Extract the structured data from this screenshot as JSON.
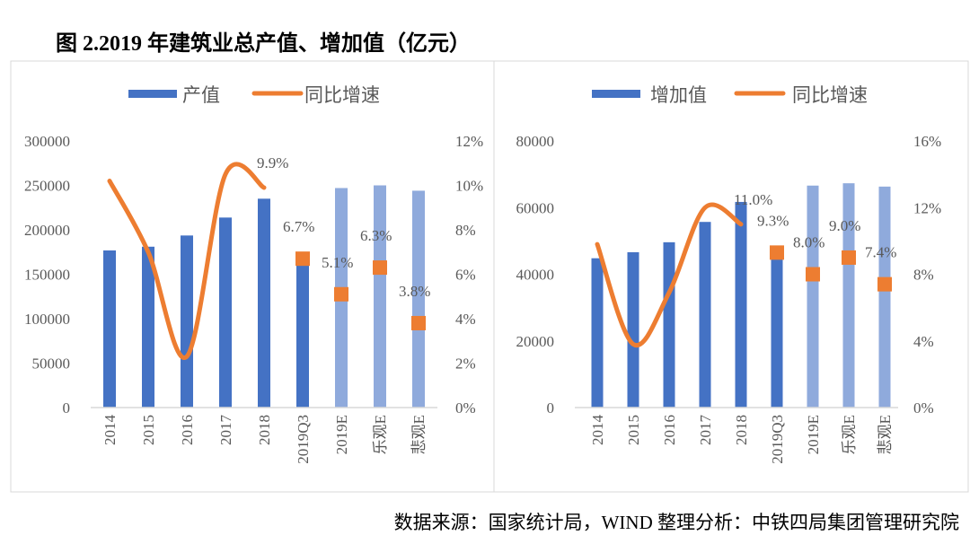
{
  "title": "图 2.2019 年建筑业总产值、增加值（亿元）",
  "footer": "数据来源：国家统计局，WIND  整理分析：中铁四局集团管理研究院",
  "colors": {
    "bar_actual": "#4472C4",
    "bar_estimate": "#8FAADC",
    "line": "#ED7D31",
    "text": "#595959",
    "axis": "#D9D9D9"
  },
  "chart_data": [
    {
      "type": "bar+line",
      "categories": [
        "2014",
        "2015",
        "2016",
        "2017",
        "2018",
        "2019Q3",
        "2019E",
        "乐观E",
        "悲观E"
      ],
      "legend": [
        "产值",
        "同比增速"
      ],
      "legend_position": "top",
      "y_left": {
        "range": [
          0,
          300000
        ],
        "ticks": [
          "0",
          "50000",
          "100000",
          "150000",
          "200000",
          "250000",
          "300000"
        ]
      },
      "y_right": {
        "range": [
          0,
          12
        ],
        "ticks": [
          "0%",
          "2%",
          "4%",
          "6%",
          "8%",
          "10%",
          "12%"
        ]
      },
      "grid": false,
      "series": [
        {
          "name": "产值",
          "kind": "bar",
          "values": [
            176800,
            181000,
            193600,
            213800,
            235000,
            170000,
            247000,
            250000,
            244000
          ],
          "estimate": [
            false,
            false,
            false,
            false,
            false,
            false,
            true,
            true,
            true
          ]
        },
        {
          "name": "同比增速",
          "kind": "line",
          "values": [
            10.2,
            7.0,
            2.3,
            10.5,
            9.9,
            null,
            null,
            null,
            null
          ],
          "labels": [
            null,
            null,
            null,
            null,
            "9.9%",
            null,
            null,
            null,
            null
          ]
        },
        {
          "name": "同比增速",
          "kind": "marker",
          "values": [
            null,
            null,
            null,
            null,
            null,
            6.7,
            5.1,
            6.3,
            3.8
          ],
          "labels": [
            null,
            null,
            null,
            null,
            null,
            "6.7%",
            "5.1%",
            "6.3%",
            "3.8%"
          ]
        }
      ]
    },
    {
      "type": "bar+line",
      "categories": [
        "2014",
        "2015",
        "2016",
        "2017",
        "2018",
        "2019Q3",
        "2019E",
        "乐观E",
        "悲观E"
      ],
      "legend": [
        "增加值",
        "同比增速"
      ],
      "legend_position": "top",
      "y_left": {
        "range": [
          0,
          80000
        ],
        "ticks": [
          "0",
          "20000",
          "40000",
          "60000",
          "80000"
        ]
      },
      "y_right": {
        "range": [
          0,
          16
        ],
        "ticks": [
          "0%",
          "4%",
          "8%",
          "12%",
          "16%"
        ]
      },
      "grid": false,
      "series": [
        {
          "name": "增加值",
          "kind": "bar",
          "values": [
            44800,
            46600,
            49600,
            55700,
            61700,
            46000,
            66600,
            67300,
            66300
          ],
          "estimate": [
            false,
            false,
            false,
            false,
            false,
            false,
            true,
            true,
            true
          ]
        },
        {
          "name": "同比增速",
          "kind": "line",
          "values": [
            9.8,
            3.8,
            6.9,
            12.0,
            11.0,
            null,
            null,
            null,
            null
          ],
          "labels": [
            null,
            null,
            null,
            null,
            "11.0%",
            null,
            null,
            null,
            null
          ]
        },
        {
          "name": "同比增速",
          "kind": "marker",
          "values": [
            null,
            null,
            null,
            null,
            null,
            9.3,
            8.0,
            9.0,
            7.4
          ],
          "labels": [
            null,
            null,
            null,
            null,
            null,
            "9.3%",
            "8.0%",
            "9.0%",
            "7.4%"
          ]
        }
      ]
    }
  ]
}
